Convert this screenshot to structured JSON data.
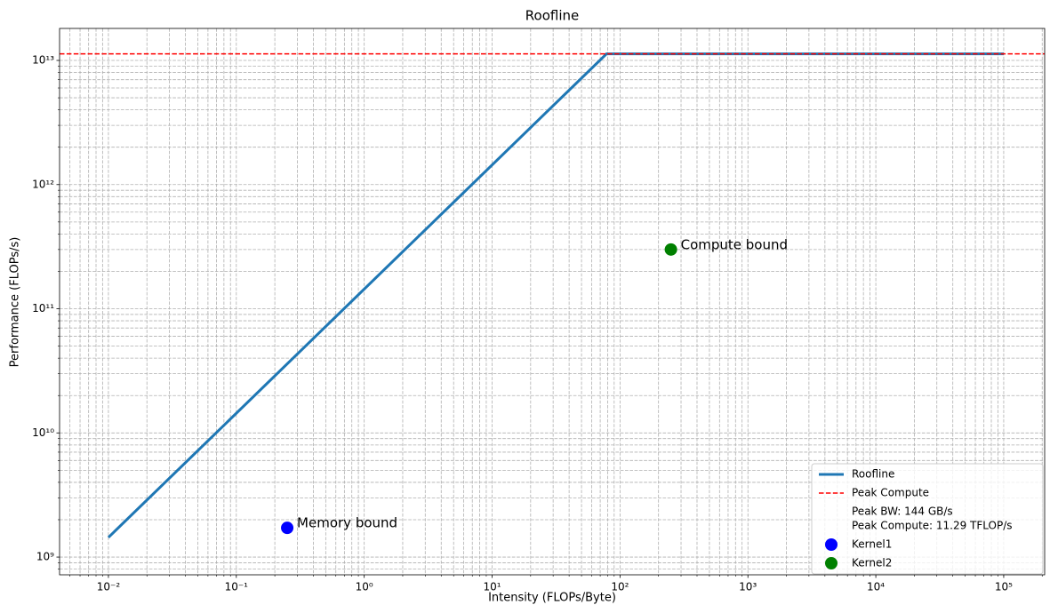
{
  "chart_data": {
    "type": "roofline",
    "title": "Roofline",
    "xlabel": "Intensity (FLOPs/Byte)",
    "ylabel": "Performance (FLOPs/s)",
    "xscale": "log",
    "yscale": "log",
    "grid": true,
    "legend": "lower right",
    "xlim": [
      0.00415,
      209000
    ],
    "ylim": [
      720000000,
      18100000000000
    ],
    "xticks": [
      {
        "value": 0.01,
        "label": "10⁻²"
      },
      {
        "value": 0.1,
        "label": "10⁻¹"
      },
      {
        "value": 1,
        "label": "10⁰"
      },
      {
        "value": 10,
        "label": "10¹"
      },
      {
        "value": 100,
        "label": "10²"
      },
      {
        "value": 1000,
        "label": "10³"
      },
      {
        "value": 10000,
        "label": "10⁴"
      },
      {
        "value": 100000,
        "label": "10⁵"
      }
    ],
    "yticks": [
      {
        "value": 1000000000,
        "label": "10⁹"
      },
      {
        "value": 10000000000,
        "label": "10¹⁰"
      },
      {
        "value": 100000000000,
        "label": "10¹¹"
      },
      {
        "value": 1000000000000,
        "label": "10¹²"
      },
      {
        "value": 10000000000000,
        "label": "10¹³"
      }
    ],
    "xminorticks": [
      0.005,
      0.006,
      0.007,
      0.008,
      0.009,
      0.02,
      0.03,
      0.04,
      0.05,
      0.06,
      0.07,
      0.08,
      0.09,
      0.2,
      0.3,
      0.4,
      0.5,
      0.6,
      0.7,
      0.8,
      0.9,
      2,
      3,
      4,
      5,
      6,
      7,
      8,
      9,
      20,
      30,
      40,
      50,
      60,
      70,
      80,
      90,
      200,
      300,
      400,
      500,
      600,
      700,
      800,
      900,
      2000,
      3000,
      4000,
      5000,
      6000,
      7000,
      8000,
      9000,
      20000,
      30000,
      40000,
      50000,
      60000,
      70000,
      80000,
      90000,
      200000
    ],
    "yminorticks": [
      800000000,
      900000000,
      2000000000,
      3000000000,
      4000000000,
      5000000000,
      6000000000,
      7000000000,
      8000000000,
      9000000000,
      20000000000,
      30000000000,
      40000000000,
      50000000000,
      60000000000,
      70000000000,
      80000000000,
      90000000000,
      200000000000,
      300000000000,
      400000000000,
      500000000000,
      600000000000,
      700000000000,
      800000000000,
      900000000000,
      2000000000000,
      3000000000000,
      4000000000000,
      5000000000000,
      6000000000000,
      7000000000000,
      8000000000000,
      9000000000000
    ],
    "series": [
      {
        "name": "Roofline",
        "kind": "line",
        "color": "#1f77b4",
        "x": [
          0.01,
          78.4,
          100000
        ],
        "values": [
          1440000000,
          11290000000000,
          11290000000000
        ]
      },
      {
        "name": "Peak Compute",
        "kind": "hline",
        "color": "#ff0000",
        "style": "dashed",
        "hline": 11290000000000
      },
      {
        "name": "Kernel1",
        "kind": "scatter",
        "color": "#0000ff",
        "x": [
          0.25
        ],
        "values": [
          1720000000
        ],
        "annotations": [
          "Memory bound"
        ]
      },
      {
        "name": "Kernel2",
        "kind": "scatter",
        "color": "#008000",
        "x": [
          250
        ],
        "values": [
          300000000000
        ],
        "annotations": [
          "Compute bound"
        ]
      }
    ],
    "legend_notes": [
      "Peak BW: 144 GB/s",
      "Peak Compute: 11.29 TFLOP/s"
    ]
  }
}
